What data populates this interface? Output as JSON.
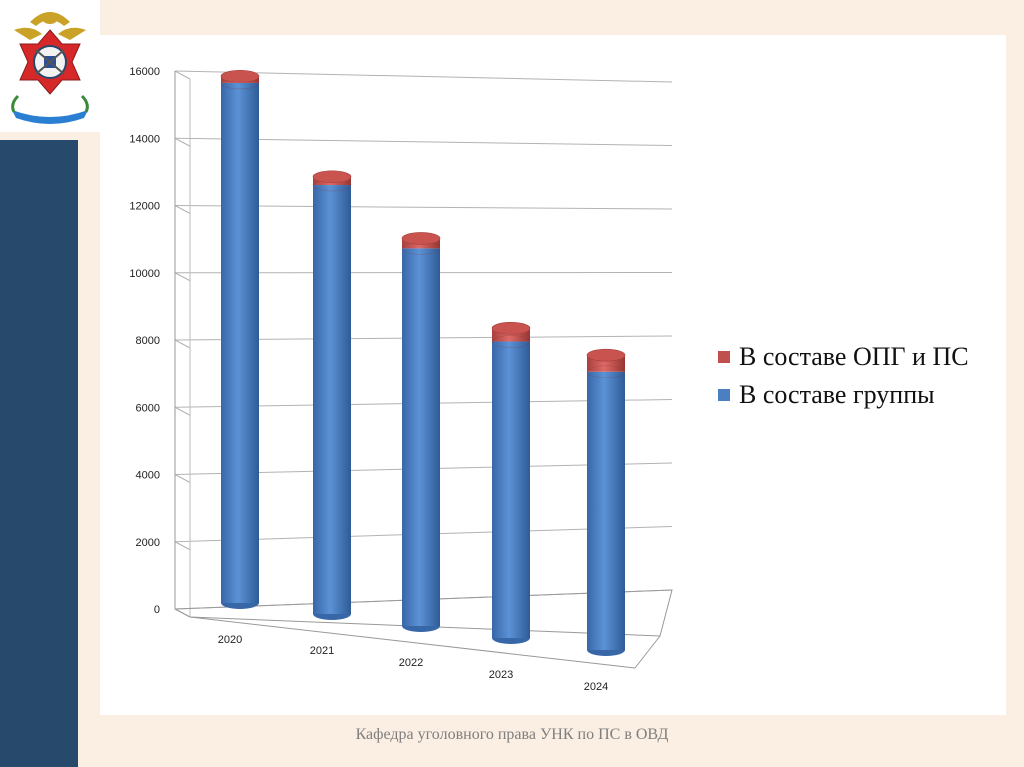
{
  "footer": {
    "text": "Кафедра уголовного права УНК по ПС в ОВД"
  },
  "logo": {
    "icon": "police-emblem-icon"
  },
  "colors": {
    "group": "#4a7fc1",
    "opg": "#c0504d",
    "sidebar": "#27496b",
    "background": "#fbeee3"
  },
  "chart_data": {
    "type": "bar",
    "stacked": true,
    "three_d": true,
    "shape": "cylinder",
    "categories": [
      "2020",
      "2021",
      "2022",
      "2023",
      "2024"
    ],
    "series": [
      {
        "name": "В составе группы",
        "values": [
          15700,
          12950,
          11400,
          8950,
          8400
        ]
      },
      {
        "name": "В составе ОПГ и ПС",
        "values": [
          200,
          250,
          300,
          400,
          500
        ]
      }
    ],
    "y_ticks": [
      "0",
      "2000",
      "4000",
      "6000",
      "8000",
      "10000",
      "12000",
      "14000",
      "16000"
    ],
    "ylim": [
      0,
      16000
    ],
    "grid": true,
    "legend_position": "right"
  }
}
